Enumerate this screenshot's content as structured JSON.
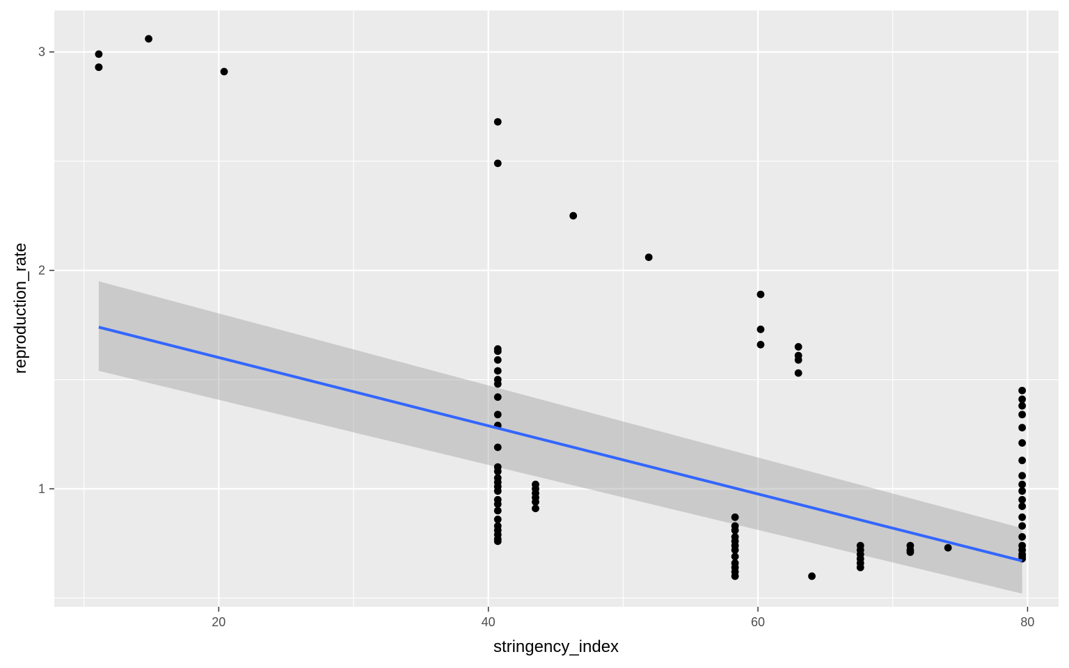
{
  "chart_data": {
    "type": "scatter",
    "title": "",
    "xlabel": "stringency_index",
    "ylabel": "reproduction_rate",
    "xlim": [
      7.8,
      82.3
    ],
    "ylim": [
      0.46,
      3.19
    ],
    "x_ticks": [
      20,
      40,
      60,
      80
    ],
    "y_ticks": [
      1,
      2,
      3
    ],
    "grid": true,
    "legend": "none",
    "colors": {
      "panel": "#ebebeb",
      "grid": "#ffffff",
      "point": "#000000",
      "fit_line": "#3366ff",
      "band": "#999999"
    },
    "points": [
      {
        "x": 11.1,
        "y": 2.99
      },
      {
        "x": 11.1,
        "y": 2.93
      },
      {
        "x": 11.1,
        "y": 2.93
      },
      {
        "x": 14.8,
        "y": 3.06
      },
      {
        "x": 20.4,
        "y": 2.91
      },
      {
        "x": 40.7,
        "y": 2.68
      },
      {
        "x": 40.7,
        "y": 2.49
      },
      {
        "x": 40.7,
        "y": 1.64
      },
      {
        "x": 40.7,
        "y": 1.63
      },
      {
        "x": 40.7,
        "y": 1.59
      },
      {
        "x": 40.7,
        "y": 1.54
      },
      {
        "x": 40.7,
        "y": 1.5
      },
      {
        "x": 40.7,
        "y": 1.48
      },
      {
        "x": 40.7,
        "y": 1.42
      },
      {
        "x": 40.7,
        "y": 1.34
      },
      {
        "x": 40.7,
        "y": 1.29
      },
      {
        "x": 40.7,
        "y": 1.19
      },
      {
        "x": 40.7,
        "y": 1.1
      },
      {
        "x": 40.7,
        "y": 1.08
      },
      {
        "x": 40.7,
        "y": 1.05
      },
      {
        "x": 40.7,
        "y": 1.03
      },
      {
        "x": 40.7,
        "y": 1.01
      },
      {
        "x": 40.7,
        "y": 0.99
      },
      {
        "x": 40.7,
        "y": 0.95
      },
      {
        "x": 40.7,
        "y": 0.93
      },
      {
        "x": 40.7,
        "y": 0.9
      },
      {
        "x": 40.7,
        "y": 0.86
      },
      {
        "x": 40.7,
        "y": 0.83
      },
      {
        "x": 40.7,
        "y": 0.81
      },
      {
        "x": 40.7,
        "y": 0.79
      },
      {
        "x": 40.7,
        "y": 0.77
      },
      {
        "x": 40.7,
        "y": 0.76
      },
      {
        "x": 43.5,
        "y": 1.02
      },
      {
        "x": 43.5,
        "y": 1.0
      },
      {
        "x": 43.5,
        "y": 0.98
      },
      {
        "x": 43.5,
        "y": 0.96
      },
      {
        "x": 43.5,
        "y": 0.94
      },
      {
        "x": 43.5,
        "y": 0.91
      },
      {
        "x": 46.3,
        "y": 2.25
      },
      {
        "x": 51.9,
        "y": 2.06
      },
      {
        "x": 58.3,
        "y": 0.87
      },
      {
        "x": 58.3,
        "y": 0.83
      },
      {
        "x": 58.3,
        "y": 0.81
      },
      {
        "x": 58.3,
        "y": 0.78
      },
      {
        "x": 58.3,
        "y": 0.76
      },
      {
        "x": 58.3,
        "y": 0.74
      },
      {
        "x": 58.3,
        "y": 0.72
      },
      {
        "x": 58.3,
        "y": 0.69
      },
      {
        "x": 58.3,
        "y": 0.66
      },
      {
        "x": 58.3,
        "y": 0.64
      },
      {
        "x": 58.3,
        "y": 0.62
      },
      {
        "x": 58.3,
        "y": 0.6
      },
      {
        "x": 60.2,
        "y": 1.89
      },
      {
        "x": 60.2,
        "y": 1.73
      },
      {
        "x": 60.2,
        "y": 1.66
      },
      {
        "x": 63.0,
        "y": 1.65
      },
      {
        "x": 63.0,
        "y": 1.61
      },
      {
        "x": 63.0,
        "y": 1.59
      },
      {
        "x": 63.0,
        "y": 1.53
      },
      {
        "x": 64.0,
        "y": 0.6
      },
      {
        "x": 67.6,
        "y": 0.74
      },
      {
        "x": 67.6,
        "y": 0.72
      },
      {
        "x": 67.6,
        "y": 0.7
      },
      {
        "x": 67.6,
        "y": 0.68
      },
      {
        "x": 67.6,
        "y": 0.66
      },
      {
        "x": 67.6,
        "y": 0.64
      },
      {
        "x": 71.3,
        "y": 0.74
      },
      {
        "x": 71.3,
        "y": 0.72
      },
      {
        "x": 71.3,
        "y": 0.71
      },
      {
        "x": 74.1,
        "y": 0.73
      },
      {
        "x": 79.6,
        "y": 1.45
      },
      {
        "x": 79.6,
        "y": 1.41
      },
      {
        "x": 79.6,
        "y": 1.38
      },
      {
        "x": 79.6,
        "y": 1.34
      },
      {
        "x": 79.6,
        "y": 1.28
      },
      {
        "x": 79.6,
        "y": 1.21
      },
      {
        "x": 79.6,
        "y": 1.13
      },
      {
        "x": 79.6,
        "y": 1.06
      },
      {
        "x": 79.6,
        "y": 1.02
      },
      {
        "x": 79.6,
        "y": 0.99
      },
      {
        "x": 79.6,
        "y": 0.95
      },
      {
        "x": 79.6,
        "y": 0.92
      },
      {
        "x": 79.6,
        "y": 0.87
      },
      {
        "x": 79.6,
        "y": 0.83
      },
      {
        "x": 79.6,
        "y": 0.78
      },
      {
        "x": 79.6,
        "y": 0.74
      },
      {
        "x": 79.6,
        "y": 0.72
      },
      {
        "x": 79.6,
        "y": 0.7
      },
      {
        "x": 79.6,
        "y": 0.69
      },
      {
        "x": 79.6,
        "y": 0.68
      }
    ],
    "fit": {
      "method": "linear",
      "x": [
        11.1,
        79.6
      ],
      "y": [
        1.74,
        0.67
      ],
      "band_upper": [
        1.95,
        0.82
      ],
      "band_lower": [
        1.54,
        0.52
      ]
    }
  }
}
